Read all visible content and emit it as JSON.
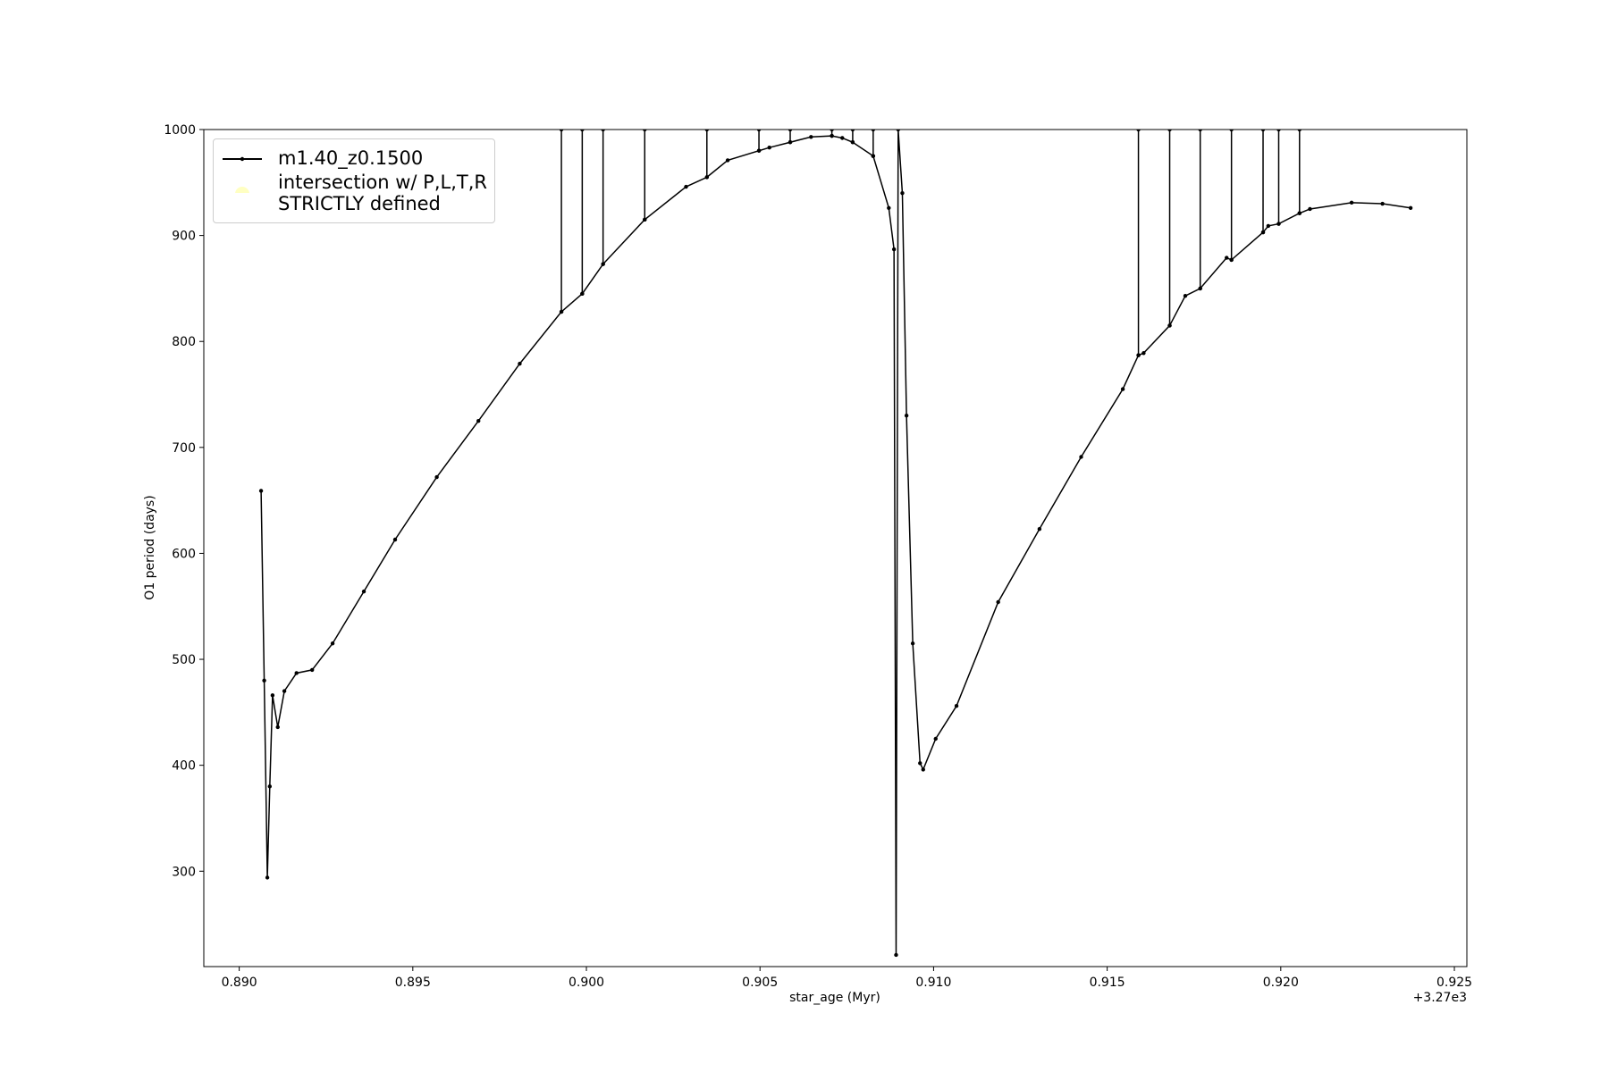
{
  "chart_data": {
    "type": "line",
    "xlabel": "star_age (Myr)",
    "ylabel": "O1 period (days)",
    "x_offset_label": "+3.27e3",
    "xlim": [
      0.88898,
      0.92536
    ],
    "ylim": [
      210,
      1000
    ],
    "xticks": [
      {
        "value": 0.89,
        "label": "0.890"
      },
      {
        "value": 0.895,
        "label": "0.895"
      },
      {
        "value": 0.9,
        "label": "0.900"
      },
      {
        "value": 0.905,
        "label": "0.905"
      },
      {
        "value": 0.91,
        "label": "0.910"
      },
      {
        "value": 0.915,
        "label": "0.915"
      },
      {
        "value": 0.92,
        "label": "0.920"
      },
      {
        "value": 0.925,
        "label": "0.925"
      }
    ],
    "yticks": [
      300,
      400,
      500,
      600,
      700,
      800,
      900,
      1000
    ],
    "grid": false,
    "legend": "upper left",
    "series": [
      {
        "name": "m1.40_z0.1500",
        "color": "#000000",
        "x": [
          0.89063,
          0.89072,
          0.89081,
          0.89088,
          0.89096,
          0.89111,
          0.8913,
          0.89165,
          0.8921,
          0.89269,
          0.89359,
          0.89449,
          0.89569,
          0.89689,
          0.89808,
          0.89928,
          0.89928,
          0.89928,
          0.89988,
          0.89988,
          0.89988,
          0.90048,
          0.90048,
          0.90048,
          0.90168,
          0.90168,
          0.90168,
          0.90287,
          0.90347,
          0.90347,
          0.90347,
          0.90407,
          0.90497,
          0.90497,
          0.90497,
          0.90527,
          0.90587,
          0.90587,
          0.90587,
          0.90647,
          0.90707,
          0.90707,
          0.90707,
          0.90737,
          0.90767,
          0.90767,
          0.90767,
          0.90826,
          0.90826,
          0.90826,
          0.90871,
          0.90886,
          0.90892,
          0.90898,
          0.9091,
          0.90922,
          0.9094,
          0.90961,
          0.9097,
          0.91006,
          0.91066,
          0.91186,
          0.91305,
          0.91425,
          0.91545,
          0.9159,
          0.9159,
          0.9159,
          0.91605,
          0.9168,
          0.9168,
          0.9168,
          0.91725,
          0.91768,
          0.91768,
          0.91768,
          0.91844,
          0.91858,
          0.91858,
          0.91858,
          0.91949,
          0.91949,
          0.91949,
          0.91964,
          0.91994,
          0.91994,
          0.91994,
          0.92054,
          0.92054,
          0.92054,
          0.92084,
          0.92204,
          0.92293,
          0.92374
        ],
        "values": [
          659,
          480,
          294,
          380,
          466,
          436,
          470,
          487,
          490,
          515,
          564,
          613,
          672,
          725,
          779,
          828,
          1000,
          828,
          845,
          1000,
          845,
          873,
          1000,
          873,
          915,
          1000,
          915,
          946,
          955,
          1000,
          955,
          971,
          980,
          1000,
          980,
          983,
          988,
          1000,
          988,
          993,
          994,
          1000,
          994,
          992,
          988,
          1000,
          988,
          975,
          1000,
          975,
          926,
          887,
          221,
          1000,
          940,
          730,
          515,
          402,
          396,
          425,
          456,
          554,
          623,
          691,
          755,
          787,
          1000,
          787,
          789,
          815,
          1000,
          815,
          843,
          850,
          1000,
          850,
          879,
          877,
          1000,
          877,
          903,
          1000,
          903,
          909,
          911,
          1000,
          911,
          921,
          1000,
          921,
          925,
          931,
          930,
          926
        ]
      },
      {
        "name": "intersection w/ P,L,T,R\nSTRICTLY defined",
        "color": "#ffffb3",
        "x": [],
        "values": []
      }
    ]
  }
}
